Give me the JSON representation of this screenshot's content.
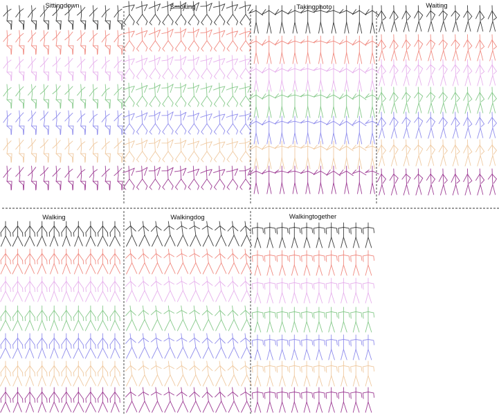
{
  "figure": {
    "panels": [
      {
        "title": "Sittingdown",
        "pose": "sit"
      },
      {
        "title": "Smoking",
        "pose": "smoke"
      },
      {
        "title": "Takingphoto",
        "pose": "photo"
      },
      {
        "title": "Waiting",
        "pose": "wait"
      },
      {
        "title": "Walking",
        "pose": "walk"
      },
      {
        "title": "Walkingdog",
        "pose": "walkdog"
      },
      {
        "title": "Walkingtogether",
        "pose": "walktogether"
      }
    ],
    "rows": [
      {
        "color": "#3a3a3a"
      },
      {
        "color": "#f08a80"
      },
      {
        "color": "#e6b0ec"
      },
      {
        "color": "#86c98a"
      },
      {
        "color": "#8f8cec"
      },
      {
        "color": "#efc9a0"
      },
      {
        "color": "#9c3a93"
      }
    ],
    "frames_per_row": 10
  }
}
